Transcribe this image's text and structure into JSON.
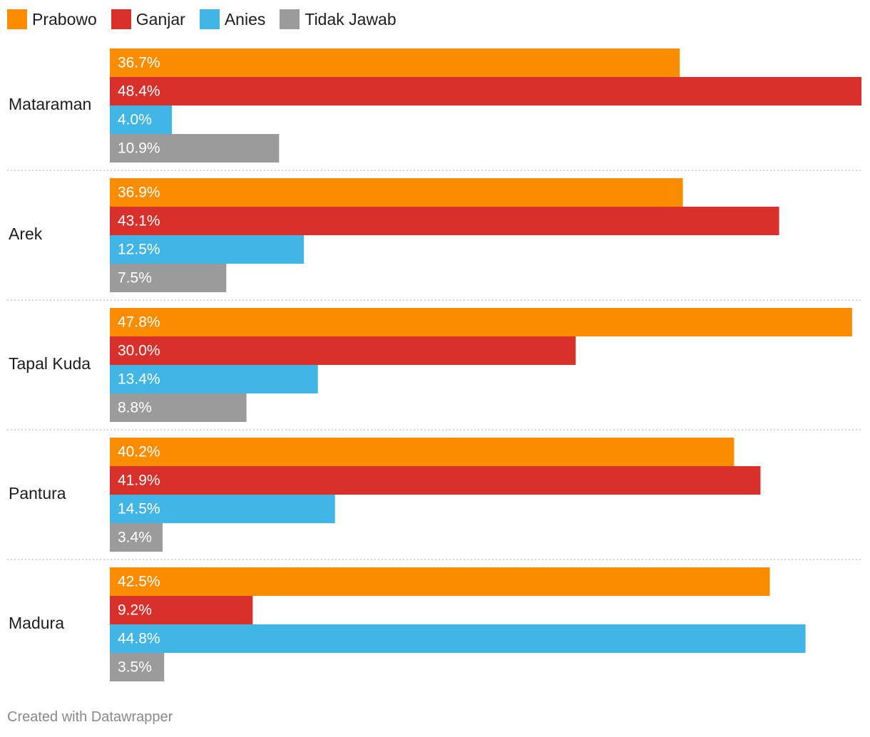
{
  "chart_data": {
    "type": "bar",
    "orientation": "horizontal",
    "categories": [
      "Mataraman",
      "Arek",
      "Tapal Kuda",
      "Pantura",
      "Madura"
    ],
    "series": [
      {
        "name": "Prabowo",
        "color": "#fa8c00",
        "values": [
          36.7,
          36.9,
          47.8,
          40.2,
          42.5
        ]
      },
      {
        "name": "Ganjar",
        "color": "#d8302a",
        "values": [
          48.4,
          43.1,
          30.0,
          41.9,
          9.2
        ]
      },
      {
        "name": "Anies",
        "color": "#41b6e6",
        "values": [
          4.0,
          12.5,
          13.4,
          14.5,
          44.8
        ]
      },
      {
        "name": "Tidak Jawab",
        "color": "#9b9b9b",
        "values": [
          10.9,
          7.5,
          8.8,
          3.4,
          3.5
        ]
      }
    ],
    "value_format": "percent_one_decimal",
    "xlim": [
      0,
      48.4
    ],
    "grid": false,
    "legend_position": "top-left"
  },
  "footer": {
    "credit": "Created with Datawrapper"
  }
}
